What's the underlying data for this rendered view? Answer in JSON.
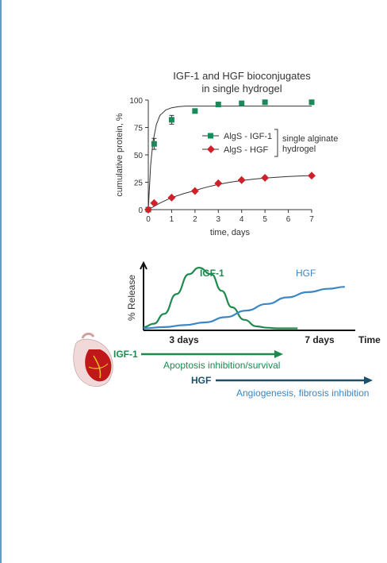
{
  "colors": {
    "igf": "#1b8a5a",
    "hgf": "#d0202a",
    "release_igf": "#1e8a4e",
    "release_hgf": "#3a86c8",
    "arrow": "#1d6b6e",
    "page_rule": "#5aa0c8"
  },
  "chart_data": [
    {
      "type": "scatter",
      "title": "IGF-1 and HGF bioconjugates",
      "subtitle": "in single hydrogel",
      "xlabel": "time, days",
      "ylabel": "cumulative protein, %",
      "xlim": [
        0,
        7
      ],
      "ylim": [
        0,
        100
      ],
      "x_ticks": [
        0,
        1,
        2,
        3,
        4,
        5,
        6,
        7
      ],
      "y_ticks": [
        0,
        25,
        50,
        75,
        100
      ],
      "legend_bracket": "single alginate hydrogel",
      "legend_position": "right",
      "series": [
        {
          "name": "AlgS - IGF-1",
          "marker": "square",
          "x": [
            0,
            0.25,
            1,
            2,
            3,
            4,
            5,
            7
          ],
          "y": [
            0,
            60,
            82,
            90,
            96,
            97,
            98,
            98
          ],
          "err": [
            0,
            5,
            4,
            2,
            2,
            2,
            1.5,
            2
          ],
          "fit_x": [
            0,
            0.1,
            0.2,
            0.35,
            0.5,
            0.75,
            1,
            1.3,
            1.6,
            2,
            3,
            4,
            5,
            6,
            7
          ],
          "fit_y": [
            0,
            40,
            62,
            78,
            86,
            91,
            93,
            94,
            94.5,
            94.5,
            94.5,
            94.5,
            94.5,
            94.5,
            94.5
          ]
        },
        {
          "name": "AlgS - HGF",
          "marker": "diamond",
          "x": [
            0,
            0.25,
            1,
            2,
            3,
            4,
            5,
            7
          ],
          "y": [
            0,
            6,
            11,
            17,
            24,
            27,
            29,
            31
          ],
          "fit_x": [
            0,
            0.5,
            1,
            1.5,
            2,
            2.5,
            3,
            3.5,
            4,
            4.5,
            5,
            5.5,
            6,
            6.5,
            7
          ],
          "fit_y": [
            0,
            6,
            11,
            14.5,
            17.5,
            20.5,
            23,
            25,
            26.5,
            27.8,
            28.8,
            29.6,
            30.2,
            30.7,
            31
          ]
        }
      ]
    },
    {
      "type": "line",
      "ylabel": "% Release",
      "x_axis_label": "Time",
      "x_marks": [
        "3 days",
        "7 days"
      ],
      "series": [
        {
          "name": "IGF-1",
          "x": [
            0,
            0.05,
            0.1,
            0.16,
            0.22,
            0.27,
            0.33,
            0.38,
            0.43,
            0.49,
            0.55,
            0.6,
            0.65,
            0.7,
            0.75
          ],
          "y": [
            0.05,
            0.1,
            0.25,
            0.55,
            0.85,
            0.95,
            0.85,
            0.6,
            0.35,
            0.16,
            0.06,
            0.04,
            0.03,
            0.03,
            0.03
          ]
        },
        {
          "name": "HGF",
          "x": [
            0,
            0.1,
            0.2,
            0.3,
            0.4,
            0.5,
            0.6,
            0.7,
            0.8,
            0.9,
            0.98
          ],
          "y": [
            0.03,
            0.05,
            0.08,
            0.12,
            0.2,
            0.3,
            0.4,
            0.5,
            0.58,
            0.63,
            0.66
          ]
        }
      ]
    }
  ],
  "timeline": {
    "igf_label": "IGF-1",
    "igf_effect": "Apoptosis inhibition/survival",
    "hgf_label": "HGF",
    "hgf_effect": "Angiogenesis, fibrosis inhibition"
  }
}
